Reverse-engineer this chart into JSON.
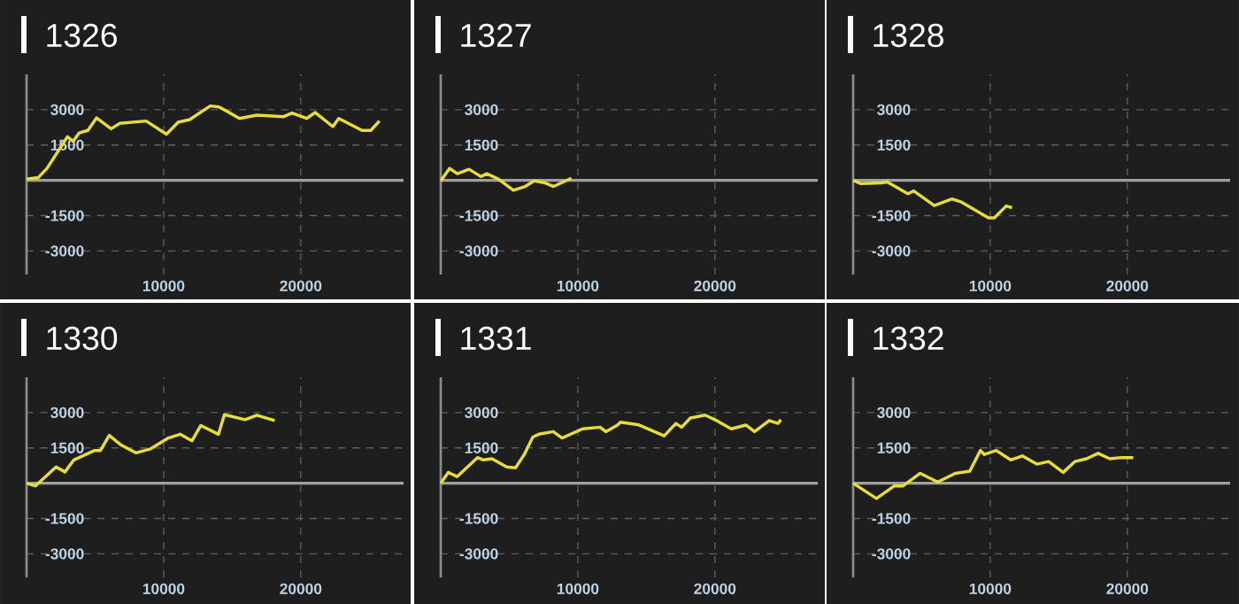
{
  "chart_data": [
    {
      "type": "line",
      "title": "1326",
      "x": [
        0,
        850,
        1490,
        2980,
        3400,
        3830,
        4470,
        5100,
        6170,
        6800,
        8720,
        10200,
        11060,
        11900,
        13400,
        14040,
        15530,
        16800,
        18720,
        19360,
        20430,
        21060,
        22340,
        22770,
        24470,
        25110,
        25740
      ],
      "series": [
        {
          "color": "#e6dc3c",
          "values": [
            50,
            115,
            510,
            1850,
            1660,
            2010,
            2120,
            2650,
            2190,
            2420,
            2520,
            1960,
            2470,
            2580,
            3160,
            3120,
            2630,
            2770,
            2700,
            2860,
            2630,
            2880,
            2280,
            2630,
            2120,
            2120,
            2520
          ]
        }
      ],
      "xlim": [
        0,
        27500
      ],
      "ylim": [
        -4000,
        4500
      ],
      "xticks": [
        10000,
        20000
      ],
      "yticks": [
        -3000,
        -1500,
        1500,
        3000
      ],
      "grid": true,
      "ref_lines": [
        {
          "axis": "y",
          "value": 0,
          "color": "#a0a0a0"
        }
      ]
    },
    {
      "type": "line",
      "title": "1327",
      "x": [
        0,
        650,
        1210,
        2070,
        2930,
        3360,
        4220,
        5300,
        6160,
        6810,
        7670,
        8230,
        9530
      ],
      "series": [
        {
          "color": "#e6dc3c",
          "values": [
            -20,
            510,
            280,
            470,
            160,
            280,
            50,
            -420,
            -260,
            -20,
            -120,
            -260,
            90
          ]
        }
      ],
      "xlim": [
        0,
        27500
      ],
      "ylim": [
        -4000,
        4500
      ],
      "xticks": [
        10000,
        20000
      ],
      "yticks": [
        -3000,
        -1500,
        1500,
        3000
      ],
      "grid": true,
      "ref_lines": [
        {
          "axis": "y",
          "value": 0,
          "color": "#a0a0a0"
        }
      ]
    },
    {
      "type": "line",
      "title": "1328",
      "x": [
        0,
        560,
        2060,
        2490,
        3990,
        4420,
        5920,
        7210,
        7850,
        9870,
        10300,
        11160,
        11590
      ],
      "series": [
        {
          "color": "#e6dc3c",
          "values": [
            0,
            -140,
            -110,
            -70,
            -570,
            -450,
            -1070,
            -790,
            -910,
            -1590,
            -1590,
            -1090,
            -1160
          ]
        }
      ],
      "xlim": [
        0,
        27500
      ],
      "ylim": [
        -4000,
        4500
      ],
      "xticks": [
        10000,
        20000
      ],
      "yticks": [
        -3000,
        -1500,
        1500,
        3000
      ],
      "grid": true,
      "ref_lines": [
        {
          "axis": "y",
          "value": 0,
          "color": "#a0a0a0"
        }
      ]
    },
    {
      "type": "line",
      "title": "1330",
      "x": [
        0,
        640,
        2150,
        2800,
        3450,
        4960,
        5390,
        6030,
        6900,
        7970,
        9050,
        10340,
        11200,
        12060,
        12710,
        14000,
        14430,
        15940,
        16800,
        18100
      ],
      "series": [
        {
          "color": "#e6dc3c",
          "values": [
            0,
            -115,
            690,
            480,
            990,
            1390,
            1390,
            2030,
            1620,
            1290,
            1460,
            1920,
            2080,
            1800,
            2450,
            2080,
            2910,
            2700,
            2890,
            2660
          ]
        }
      ],
      "xlim": [
        0,
        27500
      ],
      "ylim": [
        -4000,
        4500
      ],
      "xticks": [
        10000,
        20000
      ],
      "yticks": [
        -3000,
        -1500,
        1500,
        3000
      ],
      "grid": true,
      "ref_lines": [
        {
          "axis": "y",
          "value": 0,
          "color": "#a0a0a0"
        }
      ]
    },
    {
      "type": "line",
      "title": "1331",
      "x": [
        0,
        550,
        1190,
        2680,
        3110,
        3740,
        4810,
        5450,
        6090,
        6720,
        7150,
        8210,
        8850,
        10340,
        11620,
        12040,
        12890,
        13110,
        14380,
        16300,
        17150,
        17570,
        18210,
        19280,
        20130,
        21190,
        22260,
        22890,
        23960,
        24600,
        24810
      ],
      "series": [
        {
          "color": "#e6dc3c",
          "values": [
            0,
            460,
            280,
            1090,
            990,
            1040,
            690,
            650,
            1220,
            1960,
            2080,
            2190,
            1920,
            2310,
            2380,
            2190,
            2470,
            2590,
            2490,
            2010,
            2540,
            2380,
            2770,
            2890,
            2660,
            2310,
            2470,
            2190,
            2660,
            2540,
            2700
          ]
        }
      ],
      "xlim": [
        0,
        27500
      ],
      "ylim": [
        -4000,
        4500
      ],
      "xticks": [
        10000,
        20000
      ],
      "yticks": [
        -3000,
        -1500,
        1500,
        3000
      ],
      "grid": true,
      "ref_lines": [
        {
          "axis": "y",
          "value": 0,
          "color": "#a0a0a0"
        }
      ]
    },
    {
      "type": "line",
      "title": "1332",
      "x": [
        0,
        1700,
        2980,
        3620,
        4890,
        6170,
        7450,
        8510,
        9280,
        9570,
        10430,
        11490,
        12340,
        13400,
        14260,
        15320,
        16170,
        17020,
        17870,
        18720,
        19570,
        20430
      ],
      "series": [
        {
          "color": "#e6dc3c",
          "values": [
            0,
            -650,
            -120,
            -120,
            420,
            50,
            420,
            510,
            1390,
            1220,
            1390,
            990,
            1160,
            810,
            920,
            460,
            920,
            1040,
            1270,
            1040,
            1090,
            1090
          ]
        }
      ],
      "xlim": [
        0,
        27500
      ],
      "ylim": [
        -4000,
        4500
      ],
      "xticks": [
        10000,
        20000
      ],
      "yticks": [
        -3000,
        -1500,
        1500,
        3000
      ],
      "grid": true,
      "ref_lines": [
        {
          "axis": "y",
          "value": 0,
          "color": "#a0a0a0"
        }
      ]
    }
  ]
}
